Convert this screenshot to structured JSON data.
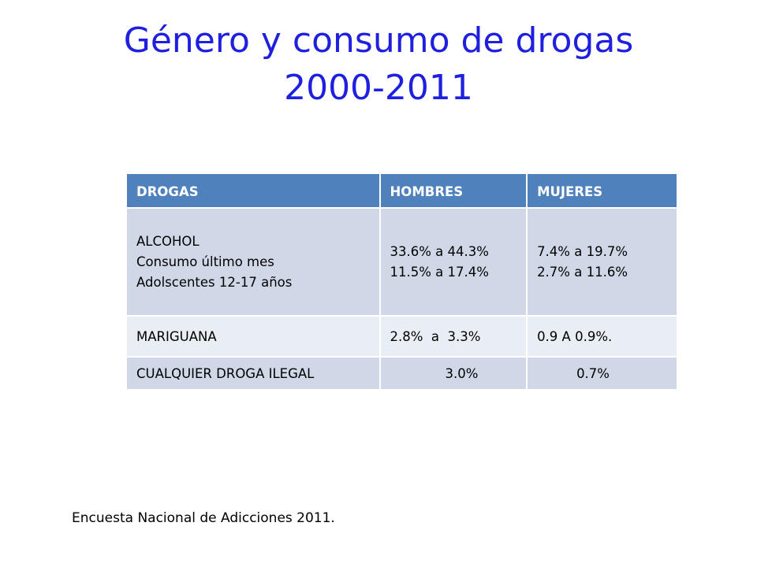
{
  "title": {
    "line1": "Género y consumo de drogas",
    "line2": "2000-2011"
  },
  "table": {
    "headers": [
      "DROGAS",
      "HOMBRES",
      "MUJERES"
    ],
    "rows": [
      {
        "drug": [
          "ALCOHOL",
          "Consumo último mes",
          "Adolscentes 12-17 años"
        ],
        "men": [
          "33.6% a 44.3%",
          "11.5% a 17.4%"
        ],
        "women": [
          "7.4% a 19.7%",
          "2.7% a 11.6%"
        ]
      },
      {
        "drug": "MARIGUANA",
        "men": "2.8%  a  3.3%",
        "women": "0.9 A 0.9%."
      },
      {
        "drug": "CUALQUIER DROGA ILEGAL",
        "men": "3.0%",
        "women": "0.7%"
      }
    ]
  },
  "source": "Encuesta Nacional de Adicciones 2011.",
  "colors": {
    "title": "#1f1fe0",
    "header_bg": "#4f81bd",
    "row_dark": "#d0d8e8",
    "row_light": "#e9edf4"
  }
}
